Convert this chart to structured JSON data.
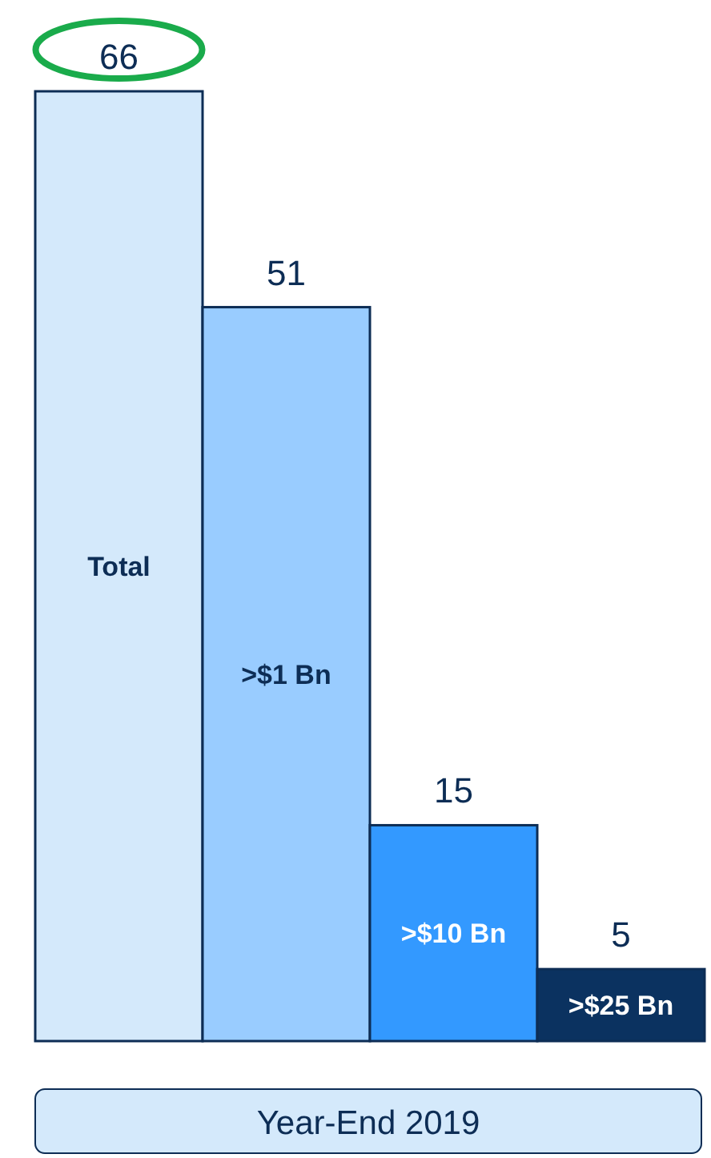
{
  "chart_data": {
    "type": "bar",
    "categories": [
      "Total",
      ">$1 Bn",
      ">$10 Bn",
      ">$25 Bn"
    ],
    "values": [
      66,
      51,
      15,
      5
    ],
    "colors": [
      "#d4e9fb",
      "#99ccff",
      "#3399ff",
      "#0b3260"
    ],
    "data_labels": true,
    "xlabel": "Year-End 2019"
  }
}
